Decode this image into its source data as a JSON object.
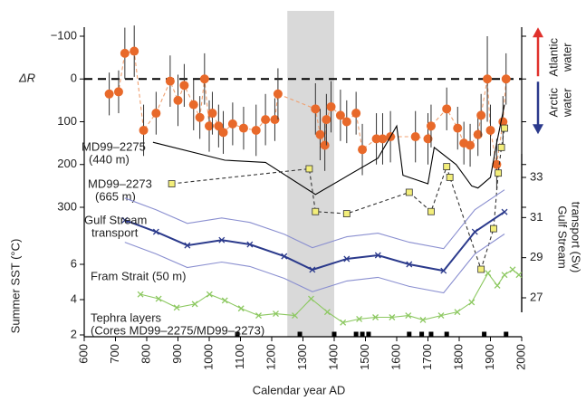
{
  "chart_data": {
    "type": "multi-panel",
    "xlabel": "Calendar year AD",
    "xlim": [
      600,
      2000
    ],
    "xticks": [
      600,
      700,
      800,
      900,
      1000,
      1100,
      1200,
      1300,
      1400,
      1500,
      1600,
      1700,
      1800,
      1900,
      2000
    ],
    "shaded_span": [
      1250,
      1400
    ],
    "shade_color": "#d9d9d9",
    "panels": [
      {
        "type": "line",
        "ylabel": "ΔR",
        "ylim": [
          300,
          -100
        ],
        "yticks": [
          {
            "value": -100,
            "label": "−100"
          },
          0,
          100,
          200,
          300
        ],
        "hline": 0,
        "annotations": [
          {
            "lines": [
              "Atlantic",
              "water"
            ],
            "color": "#e0312c",
            "direction": "up"
          },
          {
            "lines": [
              "Arctic",
              "water"
            ],
            "color": "#2b3a8c",
            "direction": "down"
          }
        ],
        "series": [
          {
            "marker": "circle",
            "color": "#e8692a",
            "line_color": "#f0a070",
            "dashed": true,
            "x": [
              680,
              710,
              730,
              760,
              790,
              830,
              875,
              900,
              920,
              950,
              970,
              985,
              1000,
              1010,
              1030,
              1045,
              1075,
              1110,
              1150,
              1180,
              1210,
              1220,
              1340,
              1355,
              1370,
              1375,
              1390,
              1420,
              1440,
              1470,
              1490,
              1535,
              1555,
              1580,
              1660,
              1700,
              1710,
              1760,
              1795,
              1815,
              1835,
              1860,
              1870,
              1890,
              1900,
              1920,
              1940,
              1950
            ],
            "values": [
              35,
              30,
              -60,
              -65,
              120,
              80,
              5,
              50,
              15,
              60,
              90,
              0,
              110,
              80,
              110,
              125,
              105,
              115,
              120,
              95,
              95,
              35,
              70,
              130,
              155,
              95,
              65,
              85,
              100,
              80,
              165,
              140,
              140,
              135,
              135,
              140,
              110,
              70,
              115,
              150,
              155,
              130,
              85,
              0,
              120,
              200,
              100,
              0
            ],
            "errors": [
              50,
              50,
              60,
              60,
              60,
              50,
              60,
              60,
              50,
              60,
              50,
              60,
              60,
              50,
              50,
              50,
              50,
              50,
              60,
              60,
              50,
              60,
              60,
              60,
              60,
              60,
              60,
              60,
              50,
              50,
              60,
              60,
              60,
              60,
              60,
              60,
              50,
              50,
              50,
              50,
              50,
              50,
              50,
              100,
              60,
              60,
              60,
              60
            ]
          },
          {
            "label_lines": [
              "MD99–2275",
              "(440 m)"
            ],
            "color": "#000000",
            "x": [
              820,
              1050,
              1180,
              1340,
              1540,
              1600,
              1620,
              1700,
              1720,
              1790,
              1840,
              1860,
              1900,
              1920,
              1945
            ],
            "values": [
              148,
              190,
              195,
              270,
              185,
              110,
              225,
              245,
              160,
              200,
              250,
              255,
              230,
              150,
              60
            ]
          },
          {
            "label_lines": [
              "MD99–2273",
              "(665 m)"
            ],
            "color": "#333333",
            "marker": "square",
            "marker_color": "#f3ee7a",
            "dashed": true,
            "x": [
              880,
              1320,
              1340,
              1440,
              1640,
              1710,
              1760,
              1770,
              1870,
              1910,
              1925,
              1935,
              1945
            ],
            "values": [
              245,
              210,
              310,
              315,
              265,
              310,
              205,
              230,
              445,
              350,
              220,
              160,
              115
            ]
          }
        ]
      },
      {
        "type": "line",
        "axis": "right",
        "ylabel_lines": [
          "Gulf Stream",
          "transport (Sv)"
        ],
        "ylim": [
          27,
          33
        ],
        "yticks": [
          27,
          29,
          31,
          33
        ],
        "color": "#2b3a8c",
        "series": [
          {
            "label_lines": [
              "Gulf Stream",
              "transport"
            ],
            "color": "#2b3a8c",
            "marker": "x",
            "width": 2,
            "x": [
              730,
              830,
              930,
              1040,
              1130,
              1240,
              1330,
              1440,
              1540,
              1640,
              1750,
              1850,
              1945
            ],
            "values": [
              30.87,
              30.29,
              29.61,
              29.88,
              29.66,
              29.07,
              28.4,
              28.94,
              29.12,
              28.67,
              28.35,
              30.29,
              31.28
            ]
          },
          {
            "color": "#8a8fd0",
            "x": [
              730,
              830,
              930,
              1040,
              1130,
              1240,
              1330,
              1440,
              1540,
              1640,
              1750,
              1850,
              1945
            ],
            "values": [
              31.97,
              31.39,
              30.71,
              30.98,
              30.76,
              30.17,
              29.5,
              30.04,
              30.22,
              29.77,
              29.45,
              31.39,
              32.38
            ]
          },
          {
            "color": "#8a8fd0",
            "x": [
              730,
              830,
              930,
              1040,
              1130,
              1240,
              1330,
              1440,
              1540,
              1640,
              1750,
              1850,
              1945
            ],
            "values": [
              29.77,
              29.19,
              28.51,
              28.78,
              28.56,
              27.97,
              27.3,
              27.84,
              28.02,
              27.57,
              27.25,
              29.19,
              30.18
            ]
          }
        ]
      },
      {
        "type": "line",
        "ylabel": "Summer SST (°C)",
        "ylim": [
          2,
          6
        ],
        "yticks": [
          2,
          4,
          6
        ],
        "color": "#8cc860",
        "series": [
          {
            "label_lines": [
              "Fram Strait (50 m)"
            ],
            "color": "#8cc860",
            "marker": "x",
            "x": [
              780,
              838,
              896,
              954,
              1001,
              1050,
              1102,
              1158,
              1213,
              1274,
              1326,
              1378,
              1428,
              1480,
              1532,
              1585,
              1637,
              1684,
              1742,
              1794,
              1840,
              1892,
              1922,
              1945,
              1971,
              1991
            ],
            "values": [
              4.3,
              4.05,
              3.55,
              3.75,
              4.3,
              3.95,
              3.5,
              3.1,
              3.2,
              3.1,
              4.05,
              3.3,
              2.7,
              2.9,
              3.0,
              3.0,
              3.1,
              2.85,
              3.1,
              3.3,
              3.85,
              5.5,
              4.8,
              5.4,
              5.7,
              5.4
            ]
          }
        ]
      },
      {
        "type": "events",
        "label_lines": [
          "Tephra layers",
          "(Cores MD99–2275/MD99–2273)"
        ],
        "color": "#000000",
        "x": [
          1090,
          1290,
          1400,
          1470,
          1490,
          1510,
          1640,
          1680,
          1710,
          1760,
          1880,
          1950
        ]
      }
    ]
  }
}
